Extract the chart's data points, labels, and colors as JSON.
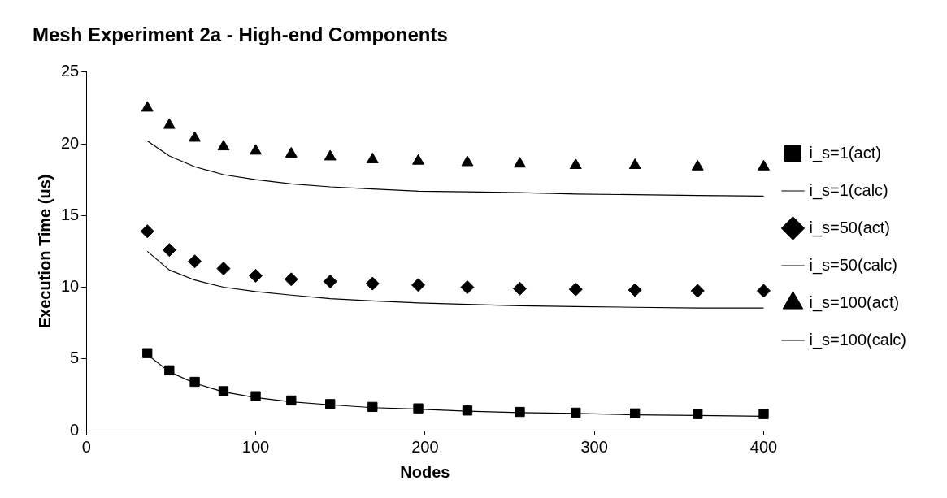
{
  "chart_data": {
    "type": "scatter",
    "title": "Mesh Experiment 2a - High-end Components",
    "xlabel": "Nodes",
    "ylabel": "Execution Time (us)",
    "x": [
      36,
      49,
      64,
      81,
      100,
      121,
      144,
      169,
      196,
      225,
      256,
      289,
      324,
      361,
      400
    ],
    "xlim": [
      0,
      400
    ],
    "xticks": [
      0,
      100,
      200,
      300,
      400
    ],
    "ylim": [
      0,
      25
    ],
    "yticks": [
      0,
      5,
      10,
      15,
      20,
      25
    ],
    "grid": false,
    "legend": "right",
    "series": [
      {
        "name": "i_s=1(act)",
        "type": "scatter",
        "marker": "square",
        "color": "#000000",
        "values": [
          5.4,
          4.2,
          3.4,
          2.75,
          2.4,
          2.1,
          1.85,
          1.65,
          1.55,
          1.4,
          1.3,
          1.25,
          1.2,
          1.15,
          1.15
        ]
      },
      {
        "name": "i_s=1(calc)",
        "type": "line",
        "marker": "none",
        "line_style": "solid",
        "color": "#000000",
        "values": [
          5.3,
          4.1,
          3.3,
          2.7,
          2.3,
          2.0,
          1.8,
          1.6,
          1.5,
          1.35,
          1.25,
          1.2,
          1.1,
          1.05,
          1.0
        ]
      },
      {
        "name": "i_s=50(act)",
        "type": "scatter",
        "marker": "diamond",
        "color": "#000000",
        "values": [
          13.9,
          12.6,
          11.8,
          11.3,
          10.8,
          10.55,
          10.4,
          10.25,
          10.15,
          10.0,
          9.9,
          9.85,
          9.8,
          9.75,
          9.75
        ]
      },
      {
        "name": "i_s=50(calc)",
        "type": "line",
        "marker": "none",
        "line_style": "solid",
        "color": "#000000",
        "values": [
          12.5,
          11.2,
          10.5,
          10.0,
          9.7,
          9.45,
          9.2,
          9.05,
          8.9,
          8.8,
          8.7,
          8.65,
          8.6,
          8.55,
          8.55
        ]
      },
      {
        "name": "i_s=100(act)",
        "type": "scatter",
        "marker": "triangle",
        "color": "#000000",
        "values": [
          22.5,
          21.3,
          20.4,
          19.8,
          19.5,
          19.3,
          19.1,
          18.9,
          18.8,
          18.7,
          18.6,
          18.5,
          18.5,
          18.4,
          18.4
        ]
      },
      {
        "name": "i_s=100(calc)",
        "type": "line",
        "marker": "none",
        "line_style": "solid",
        "color": "#000000",
        "values": [
          20.2,
          19.15,
          18.4,
          17.85,
          17.5,
          17.2,
          17.0,
          16.85,
          16.7,
          16.65,
          16.6,
          16.5,
          16.45,
          16.4,
          16.35
        ]
      }
    ]
  }
}
